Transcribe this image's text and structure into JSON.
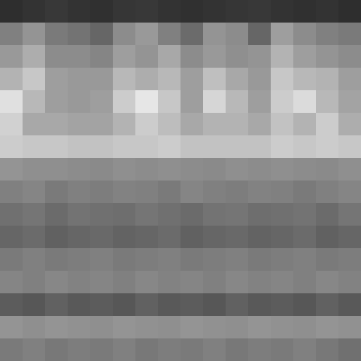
{
  "chart_data": {
    "type": "heatmap",
    "tick_labels": false,
    "zlim": [
      0,
      100
    ],
    "cells": [
      [
        18,
        20,
        22,
        20,
        19,
        21,
        22,
        20,
        19,
        20,
        21,
        22,
        20,
        19,
        20,
        18
      ],
      [
        50,
        58,
        48,
        45,
        40,
        55,
        60,
        50,
        42,
        58,
        55,
        40,
        62,
        55,
        50,
        48
      ],
      [
        60,
        68,
        55,
        55,
        52,
        62,
        58,
        66,
        55,
        60,
        56,
        58,
        70,
        62,
        58,
        55
      ],
      [
        70,
        78,
        62,
        60,
        60,
        72,
        68,
        72,
        62,
        75,
        66,
        60,
        78,
        72,
        70,
        62
      ],
      [
        88,
        72,
        62,
        60,
        62,
        80,
        90,
        78,
        62,
        84,
        72,
        62,
        80,
        86,
        72,
        64
      ],
      [
        82,
        66,
        66,
        64,
        64,
        70,
        80,
        74,
        66,
        70,
        70,
        66,
        76,
        70,
        80,
        68
      ],
      [
        80,
        78,
        78,
        76,
        76,
        78,
        78,
        80,
        76,
        76,
        76,
        76,
        80,
        78,
        80,
        78
      ],
      [
        58,
        56,
        56,
        55,
        54,
        56,
        55,
        56,
        55,
        54,
        56,
        55,
        56,
        55,
        54,
        56
      ],
      [
        50,
        52,
        48,
        50,
        49,
        51,
        50,
        48,
        52,
        50,
        49,
        51,
        50,
        48,
        50,
        52
      ],
      [
        44,
        46,
        42,
        45,
        44,
        43,
        46,
        44,
        42,
        45,
        46,
        43,
        44,
        45,
        42,
        46
      ],
      [
        40,
        42,
        38,
        40,
        41,
        39,
        40,
        42,
        38,
        40,
        41,
        39,
        40,
        42,
        38,
        40
      ],
      [
        48,
        50,
        48,
        49,
        50,
        48,
        49,
        50,
        48,
        49,
        50,
        48,
        49,
        50,
        48,
        49
      ],
      [
        52,
        50,
        53,
        51,
        52,
        50,
        53,
        51,
        52,
        50,
        53,
        51,
        52,
        50,
        53,
        51
      ],
      [
        36,
        34,
        38,
        35,
        36,
        34,
        38,
        35,
        36,
        34,
        38,
        35,
        36,
        34,
        38,
        35
      ],
      [
        58,
        56,
        58,
        57,
        56,
        58,
        57,
        56,
        58,
        57,
        56,
        58,
        57,
        56,
        58,
        57
      ],
      [
        48,
        50,
        47,
        49,
        48,
        50,
        47,
        49,
        48,
        50,
        47,
        49,
        48,
        50,
        47,
        44
      ]
    ]
  }
}
